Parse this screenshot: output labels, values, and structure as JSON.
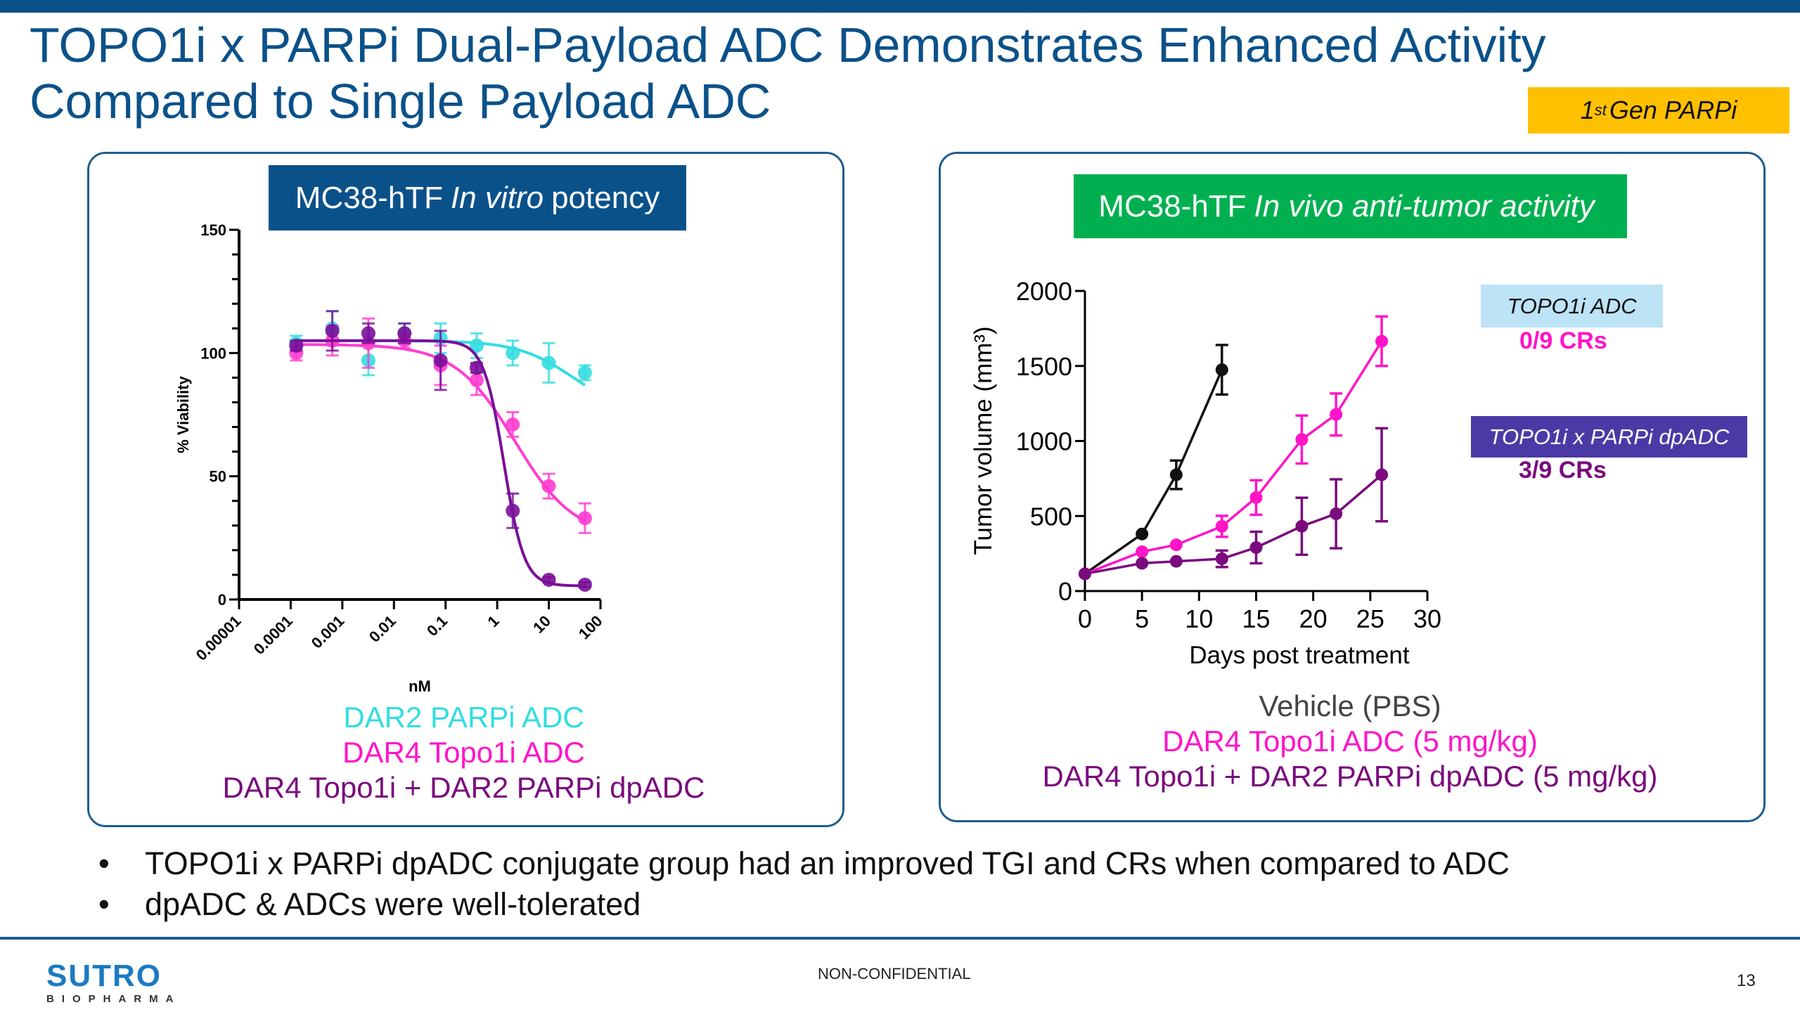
{
  "header": {
    "title_line1": "TOPO1i x PARPi Dual-Payload ADC Demonstrates Enhanced Activity",
    "title_line2": "Compared to Single Payload ADC",
    "tag": {
      "sup_prefix": "1",
      "sup": "st",
      "rest": "Gen PARPi"
    }
  },
  "colors": {
    "brand_blue": "#0b5189",
    "tag_yellow": "#ffc000",
    "invivo_green": "#00b050",
    "cyan": "#33dde0",
    "magenta": "#ff3dd0",
    "purple": "#7a0f9a",
    "vehicle": "#111111",
    "invivo_magenta": "#ff14c8",
    "invivo_purple": "#7a0a7d"
  },
  "left_panel": {
    "header": {
      "pre": "MC38-hTF",
      "italic": "In vitro",
      "post": "potency"
    },
    "legend": [
      "DAR2 PARPi ADC",
      "DAR4 Topo1i ADC",
      "DAR4 Topo1i + DAR2 PARPi dpADC"
    ]
  },
  "right_panel": {
    "header": {
      "pre": "MC38-hTF",
      "italic": "In vivo anti-tumor activity"
    },
    "annotations": [
      {
        "label": "TOPO1i ADC",
        "result": "0/9 CRs"
      },
      {
        "label": "TOPO1i x PARPi dpADC",
        "result": "3/9 CRs"
      }
    ],
    "legend": [
      "Vehicle (PBS)",
      "DAR4 Topo1i ADC (5 mg/kg)",
      "DAR4 Topo1i + DAR2 PARPi dpADC (5 mg/kg)"
    ]
  },
  "bullets": [
    "TOPO1i x PARPi dpADC conjugate group had an improved TGI and CRs when compared to ADC",
    "dpADC & ADCs were well-tolerated"
  ],
  "footer": {
    "logo_main": "SUTRO",
    "logo_sub": "BIOPHARMA",
    "classification": "NON-CONFIDENTIAL",
    "page_number": "13"
  },
  "chart_data": [
    {
      "type": "scatter",
      "title": "MC38-hTF In vitro potency",
      "xlabel": "nM",
      "ylabel": "% Viability",
      "xscale": "log",
      "xlim": [
        1e-05,
        100
      ],
      "ylim": [
        0,
        150
      ],
      "xticks": [
        "0.00001",
        "0.0001",
        "0.001",
        "0.01",
        "0.1",
        "1",
        "10",
        "100"
      ],
      "yticks": [
        0,
        50,
        100,
        150
      ],
      "grid": false,
      "fit_curves": true,
      "x": [
        0.000128,
        0.00064,
        0.0032,
        0.016,
        0.08,
        0.4,
        2,
        10,
        50
      ],
      "series": [
        {
          "name": "DAR2 PARPi ADC",
          "color": "#33dde0",
          "values": [
            104,
            110,
            97,
            108,
            106,
            103,
            100,
            96,
            92
          ],
          "errors": [
            3,
            7,
            6,
            4,
            6,
            5,
            5,
            8,
            3
          ],
          "fit": {
            "top": 105,
            "bottom": 75,
            "ec50": 30,
            "hill": 0.8
          }
        },
        {
          "name": "DAR4 Topo1i ADC",
          "color": "#ff3dd0",
          "values": [
            100,
            105,
            104,
            105,
            95,
            89,
            71,
            46,
            33
          ],
          "errors": [
            3,
            6,
            10,
            3,
            8,
            6,
            5,
            5,
            6
          ],
          "fit": {
            "top": 103.5,
            "bottom": 25,
            "ec50": 2.2,
            "hill": 0.75
          }
        },
        {
          "name": "DAR4 Topo1i + DAR2 PARPi dpADC",
          "color": "#7a0f9a",
          "values": [
            103,
            109,
            108,
            108,
            97,
            94,
            36,
            8,
            6
          ],
          "errors": [
            2,
            8,
            4,
            4,
            12,
            2,
            7,
            1,
            1
          ],
          "fit": {
            "top": 105,
            "bottom": 5.5,
            "ec50": 1.35,
            "hill": 2.2
          }
        }
      ]
    },
    {
      "type": "line",
      "title": "MC38-hTF In vivo anti-tumor activity",
      "xlabel": "Days post treatment",
      "ylabel": "Tumor volume (mm³)",
      "xlim": [
        0,
        30
      ],
      "ylim": [
        0,
        2000
      ],
      "xticks": [
        0,
        5,
        10,
        15,
        20,
        25,
        30
      ],
      "yticks": [
        0,
        500,
        1000,
        1500,
        2000
      ],
      "grid": false,
      "series": [
        {
          "name": "Vehicle (PBS)",
          "color": "#111111",
          "x": [
            0,
            5,
            8,
            12
          ],
          "values": [
            115,
            380,
            775,
            1475
          ],
          "errors": [
            15,
            20,
            95,
            165
          ]
        },
        {
          "name": "DAR4 Topo1i ADC (5 mg/kg)",
          "color": "#ff14c8",
          "x": [
            0,
            5,
            8,
            12,
            15,
            19,
            22,
            26
          ],
          "values": [
            115,
            262,
            308,
            431,
            623,
            1010,
            1177,
            1665
          ],
          "errors": [
            10,
            20,
            25,
            70,
            115,
            160,
            140,
            165
          ]
        },
        {
          "name": "DAR4 Topo1i + DAR2 PARPi dpADC (5 mg/kg)",
          "color": "#7a0a7d",
          "x": [
            0,
            5,
            8,
            12,
            15,
            19,
            22,
            26
          ],
          "values": [
            115,
            185,
            198,
            215,
            290,
            432,
            515,
            775
          ],
          "errors": [
            10,
            15,
            15,
            55,
            105,
            190,
            230,
            310
          ]
        }
      ]
    }
  ]
}
